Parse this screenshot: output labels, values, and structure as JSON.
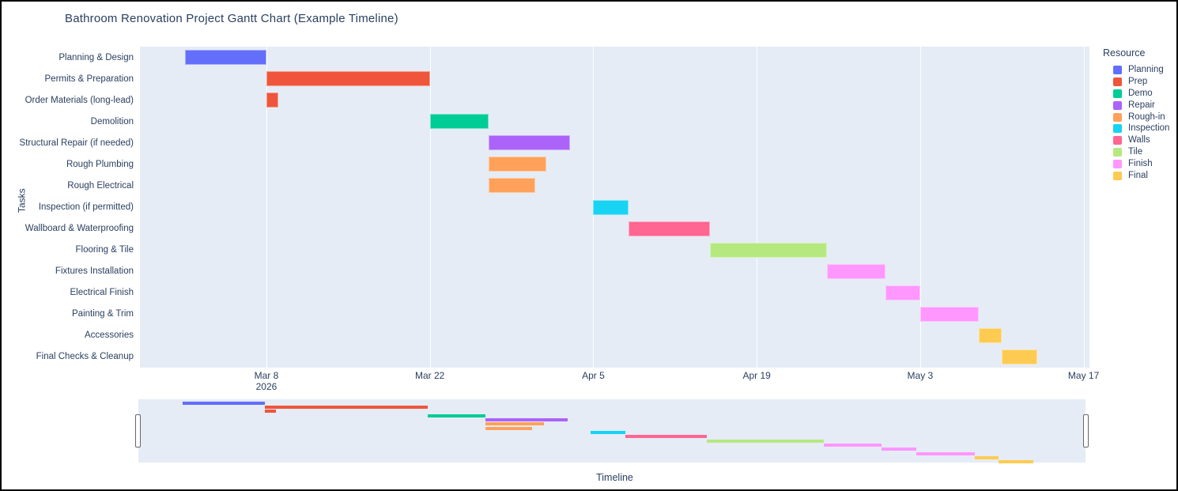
{
  "title": "Bathroom Renovation Project Gantt Chart (Example Timeline)",
  "axes": {
    "x_title": "Timeline",
    "y_title": "Tasks",
    "x_range": [
      "2026-02-25T04:00:00",
      "2026-05-17T12:00:00"
    ],
    "x_ticks": [
      {
        "label": "Mar 8",
        "sublabel": "2026",
        "date": "2026-03-08"
      },
      {
        "label": "Mar 22",
        "sublabel": "",
        "date": "2026-03-22"
      },
      {
        "label": "Apr 5",
        "sublabel": "",
        "date": "2026-04-05"
      },
      {
        "label": "Apr 19",
        "sublabel": "",
        "date": "2026-04-19"
      },
      {
        "label": "May 3",
        "sublabel": "",
        "date": "2026-05-03"
      },
      {
        "label": "May 17",
        "sublabel": "",
        "date": "2026-05-17"
      }
    ]
  },
  "legend": {
    "title": "Resource",
    "items": [
      {
        "label": "Planning",
        "color": "#636EFA"
      },
      {
        "label": "Prep",
        "color": "#EF553B"
      },
      {
        "label": "Demo",
        "color": "#00CC96"
      },
      {
        "label": "Repair",
        "color": "#AB63FA"
      },
      {
        "label": "Rough-in",
        "color": "#FFA15A"
      },
      {
        "label": "Inspection",
        "color": "#19D3F3"
      },
      {
        "label": "Walls",
        "color": "#FF6692"
      },
      {
        "label": "Tile",
        "color": "#B6E880"
      },
      {
        "label": "Finish",
        "color": "#FF97FF"
      },
      {
        "label": "Final",
        "color": "#FECB52"
      }
    ]
  },
  "chart_data": {
    "type": "gantt",
    "x_axis": "date",
    "x_range": [
      "2026-02-25T04:00:00",
      "2026-05-17T12:00:00"
    ],
    "tasks": [
      {
        "task": "Planning & Design",
        "start": "2026-03-01",
        "end": "2026-03-08",
        "resource": "Planning"
      },
      {
        "task": "Permits & Preparation",
        "start": "2026-03-08",
        "end": "2026-03-22",
        "resource": "Prep"
      },
      {
        "task": "Order Materials (long-lead)",
        "start": "2026-03-08",
        "end": "2026-03-09",
        "resource": "Prep"
      },
      {
        "task": "Demolition",
        "start": "2026-03-22",
        "end": "2026-03-27",
        "resource": "Demo"
      },
      {
        "task": "Structural Repair (if needed)",
        "start": "2026-03-27",
        "end": "2026-04-03",
        "resource": "Repair"
      },
      {
        "task": "Rough Plumbing",
        "start": "2026-03-27",
        "end": "2026-04-01",
        "resource": "Rough-in"
      },
      {
        "task": "Rough Electrical",
        "start": "2026-03-27",
        "end": "2026-03-31",
        "resource": "Rough-in"
      },
      {
        "task": "Inspection (if permitted)",
        "start": "2026-04-05",
        "end": "2026-04-08",
        "resource": "Inspection"
      },
      {
        "task": "Wallboard & Waterproofing",
        "start": "2026-04-08",
        "end": "2026-04-15",
        "resource": "Walls"
      },
      {
        "task": "Flooring & Tile",
        "start": "2026-04-15",
        "end": "2026-04-25",
        "resource": "Tile"
      },
      {
        "task": "Fixtures Installation",
        "start": "2026-04-25",
        "end": "2026-04-30",
        "resource": "Finish"
      },
      {
        "task": "Electrical Finish",
        "start": "2026-04-30",
        "end": "2026-05-03",
        "resource": "Finish"
      },
      {
        "task": "Painting & Trim",
        "start": "2026-05-03",
        "end": "2026-05-08",
        "resource": "Finish"
      },
      {
        "task": "Accessories",
        "start": "2026-05-08",
        "end": "2026-05-10",
        "resource": "Final"
      },
      {
        "task": "Final Checks & Cleanup",
        "start": "2026-05-10",
        "end": "2026-05-13",
        "resource": "Final"
      }
    ]
  },
  "colors": {
    "plot_background": "#E5ECF6",
    "gridline": "#FFFFFF",
    "text": "#2A3F5F"
  },
  "rangeslider": {
    "visible": true
  }
}
